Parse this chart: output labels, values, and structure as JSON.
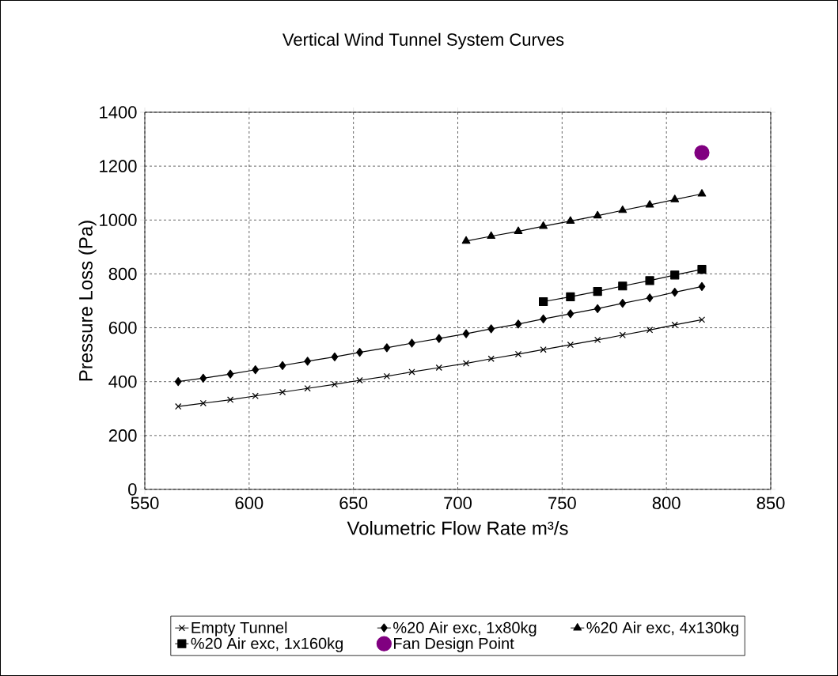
{
  "chart_data": {
    "type": "line",
    "title": "Vertical Wind Tunnel System Curves",
    "xlabel": "Volumetric Flow Rate m³/s",
    "ylabel": "Pressure Loss (Pa)",
    "xlim": [
      550,
      850
    ],
    "xticks": [
      550,
      600,
      650,
      700,
      750,
      800,
      850
    ],
    "ylim": [
      0,
      1400
    ],
    "yticks": [
      0,
      200,
      400,
      600,
      800,
      1000,
      1200,
      1400
    ],
    "grid": true,
    "legend": "bottom",
    "line_style": "solid",
    "series": [
      {
        "name": "Empty Tunnel",
        "color": "#000000",
        "marker": "cross",
        "x": [
          566,
          578,
          591,
          603,
          616,
          628,
          641,
          653,
          666,
          678,
          691,
          704,
          716,
          729,
          741,
          754,
          767,
          779,
          792,
          804,
          817
        ],
        "values": [
          308,
          320,
          333,
          347,
          361,
          375,
          390,
          405,
          420,
          436,
          452,
          468,
          485,
          502,
          519,
          537,
          555,
          573,
          592,
          611,
          630
        ]
      },
      {
        "name": "%20 Air exc, 1x80kg",
        "color": "#000000",
        "marker": "diamond",
        "x": [
          566,
          578,
          591,
          603,
          616,
          628,
          641,
          653,
          666,
          678,
          691,
          704,
          716,
          729,
          741,
          754,
          767,
          779,
          792,
          804,
          817
        ],
        "values": [
          400,
          413,
          428,
          444,
          460,
          476,
          492,
          509,
          526,
          543,
          560,
          578,
          596,
          614,
          633,
          652,
          671,
          691,
          711,
          732,
          753
        ]
      },
      {
        "name": "%20 Air exc, 4x130kg",
        "color": "#000000",
        "marker": "triangle",
        "x": [
          704,
          716,
          729,
          741,
          754,
          767,
          779,
          792,
          804,
          817
        ],
        "values": [
          922,
          940,
          958,
          977,
          996,
          1016,
          1036,
          1056,
          1076,
          1097
        ]
      },
      {
        "name": "%20 Air exc, 1x160kg",
        "color": "#000000",
        "marker": "square",
        "x": [
          741,
          754,
          767,
          779,
          792,
          804,
          817
        ],
        "values": [
          697,
          715,
          735,
          755,
          775,
          796,
          817
        ]
      },
      {
        "name": "Fan Design Point",
        "type": "scatter",
        "color": "#800080",
        "marker": "circle",
        "x": [
          817
        ],
        "values": [
          1250
        ]
      }
    ]
  }
}
